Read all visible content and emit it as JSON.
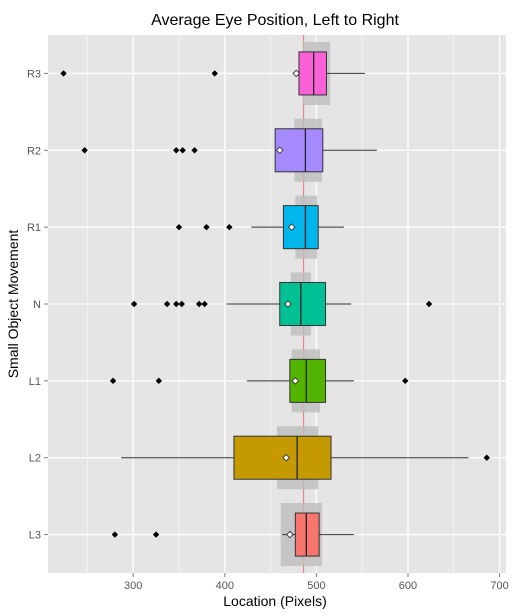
{
  "chart_data": {
    "type": "boxplot",
    "title": "Average Eye Position, Left to Right",
    "xlabel": "Location (Pixels)",
    "ylabel": "Small Object Movement",
    "orientation": "horizontal",
    "xlim": [
      207,
      707
    ],
    "xticks": [
      300,
      400,
      500,
      600,
      700
    ],
    "grid": true,
    "background_color": "#e5e5e5",
    "reference_line": {
      "x": 486,
      "color": "#f08080"
    },
    "categories": [
      "L3",
      "L2",
      "L1",
      "N",
      "R1",
      "R2",
      "R3"
    ],
    "series": [
      {
        "category": "L3",
        "color": "#f8766d",
        "whisker_low": 463,
        "q1": 477,
        "median": 489,
        "q3": 503,
        "whisker_high": 541,
        "mean": 471,
        "notch_low": 461,
        "notch_high": 506,
        "outliers": [
          280,
          325
        ]
      },
      {
        "category": "L2",
        "color": "#c49a00",
        "whisker_low": 287,
        "q1": 410,
        "median": 479,
        "q3": 516,
        "whisker_high": 666,
        "mean": 467,
        "notch_low": 457,
        "notch_high": 502,
        "outliers": [
          686
        ]
      },
      {
        "category": "L1",
        "color": "#53b400",
        "whisker_low": 424,
        "q1": 471,
        "median": 489,
        "q3": 510,
        "whisker_high": 541,
        "mean": 477,
        "notch_low": 473,
        "notch_high": 504,
        "outliers": [
          278,
          328,
          597
        ]
      },
      {
        "category": "N",
        "color": "#00c094",
        "whisker_low": 402,
        "q1": 460,
        "median": 483,
        "q3": 510,
        "whisker_high": 538,
        "mean": 469,
        "notch_low": 472,
        "notch_high": 494,
        "outliers": [
          301,
          337,
          347,
          353,
          372,
          378,
          623
        ]
      },
      {
        "category": "R1",
        "color": "#00b6eb",
        "whisker_low": 429,
        "q1": 464,
        "median": 488,
        "q3": 502,
        "whisker_high": 530,
        "mean": 473,
        "notch_low": 477,
        "notch_high": 501,
        "outliers": [
          350,
          380,
          405
        ]
      },
      {
        "category": "R2",
        "color": "#a58aff",
        "whisker_low": 455,
        "q1": 455,
        "median": 488,
        "q3": 507,
        "whisker_high": 566,
        "mean": 460,
        "notch_low": 476,
        "notch_high": 506,
        "outliers": [
          247,
          347,
          354,
          367
        ]
      },
      {
        "category": "R3",
        "color": "#fb61d7",
        "whisker_low": 478,
        "q1": 481,
        "median": 497,
        "q3": 511,
        "whisker_high": 553,
        "mean": 478,
        "notch_low": 485,
        "notch_high": 515,
        "outliers": [
          224,
          389
        ]
      }
    ]
  }
}
